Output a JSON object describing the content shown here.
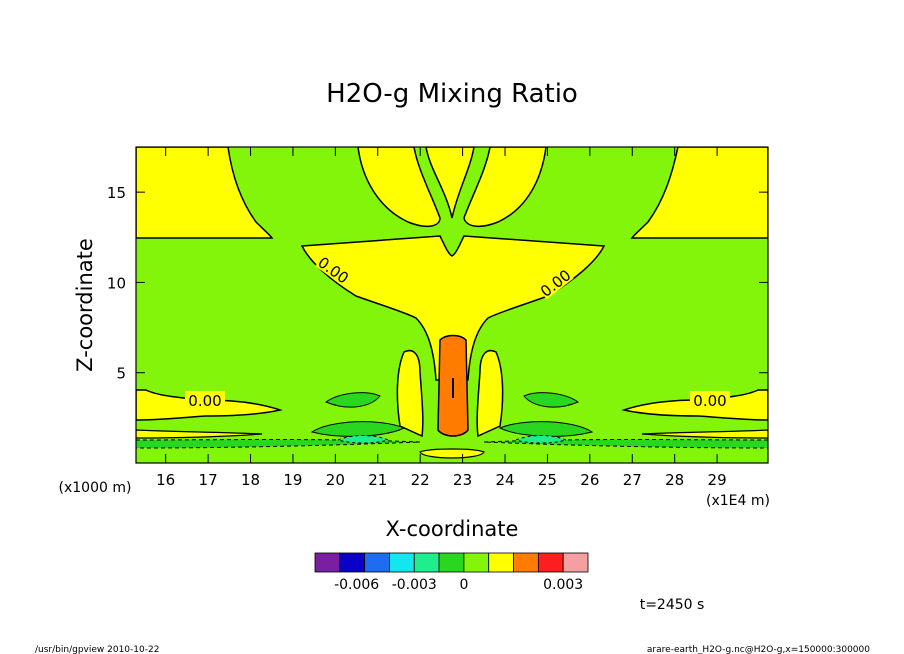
{
  "chart_data": {
    "type": "heatmap",
    "title": "H2O-g Mixing Ratio",
    "xlabel": "X-coordinate",
    "ylabel": "Z-coordinate",
    "x_unit": "(x1E4 m)",
    "y_unit": "(x1000 m)",
    "xlim": [
      15.3,
      30.2
    ],
    "ylim": [
      0,
      17.5
    ],
    "x_ticks": [
      "16",
      "17",
      "18",
      "19",
      "20",
      "21",
      "22",
      "23",
      "24",
      "25",
      "26",
      "27",
      "28",
      "29"
    ],
    "y_ticks": [
      "5",
      "10",
      "15"
    ],
    "grid": false,
    "legend": "bottom-center colorbar",
    "colorbar": {
      "colors": [
        "#7a1fa2",
        "#0a00c8",
        "#1e6cf0",
        "#14e6f0",
        "#1fee8c",
        "#28d71e",
        "#82f50a",
        "#ffff00",
        "#ff7c00",
        "#ff1e1e",
        "#f5a0a0"
      ],
      "tick_labels": [
        "-0.006",
        "-0.003",
        "0",
        "0.003"
      ]
    },
    "contour_labels": [
      "0.00",
      "0.00",
      "0.00",
      "0.00"
    ],
    "time_label": "t=2450 s"
  },
  "footer": {
    "left": "/usr/bin/gpview   2010-10-22",
    "right": "arare-earth_H2O-g.nc@H2O-g,x=150000:300000"
  }
}
